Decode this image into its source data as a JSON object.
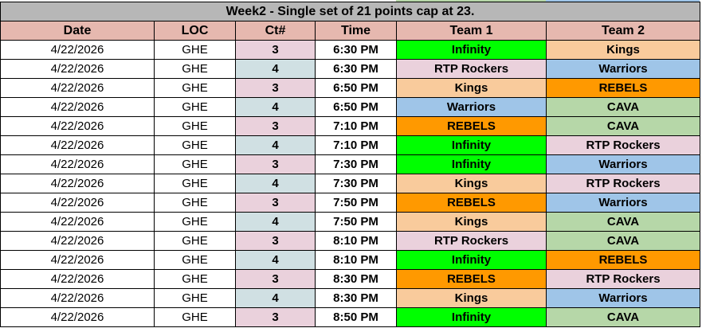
{
  "title": "Week2 - Single set of 21 points cap at 23.",
  "headers": [
    "Date",
    "LOC",
    "Ct#",
    "Time",
    "Team 1",
    "Team 2"
  ],
  "court_colors": {
    "3": "#ead1dc",
    "4": "#d0e0e3"
  },
  "team_colors": {
    "Infinity": "#00ff00",
    "Kings": "#f9cb9c",
    "RTP Rockers": "#ead1dc",
    "Warriors": "#9fc5e8",
    "REBELS": "#ff9900",
    "CAVA": "#b6d7a8"
  },
  "rows": [
    {
      "date": "4/22/2026",
      "loc": "GHE",
      "ct": "3",
      "time": "6:30 PM",
      "team1": "Infinity",
      "team2": "Kings"
    },
    {
      "date": "4/22/2026",
      "loc": "GHE",
      "ct": "4",
      "time": "6:30 PM",
      "team1": "RTP Rockers",
      "team2": "Warriors"
    },
    {
      "date": "4/22/2026",
      "loc": "GHE",
      "ct": "3",
      "time": "6:50 PM",
      "team1": "Kings",
      "team2": "REBELS"
    },
    {
      "date": "4/22/2026",
      "loc": "GHE",
      "ct": "4",
      "time": "6:50 PM",
      "team1": "Warriors",
      "team2": "CAVA"
    },
    {
      "date": "4/22/2026",
      "loc": "GHE",
      "ct": "3",
      "time": "7:10 PM",
      "team1": "REBELS",
      "team2": "CAVA"
    },
    {
      "date": "4/22/2026",
      "loc": "GHE",
      "ct": "4",
      "time": "7:10 PM",
      "team1": "Infinity",
      "team2": "RTP Rockers"
    },
    {
      "date": "4/22/2026",
      "loc": "GHE",
      "ct": "3",
      "time": "7:30 PM",
      "team1": "Infinity",
      "team2": "Warriors"
    },
    {
      "date": "4/22/2026",
      "loc": "GHE",
      "ct": "4",
      "time": "7:30 PM",
      "team1": "Kings",
      "team2": "RTP Rockers"
    },
    {
      "date": "4/22/2026",
      "loc": "GHE",
      "ct": "3",
      "time": "7:50 PM",
      "team1": "REBELS",
      "team2": "Warriors"
    },
    {
      "date": "4/22/2026",
      "loc": "GHE",
      "ct": "4",
      "time": "7:50 PM",
      "team1": "Kings",
      "team2": "CAVA"
    },
    {
      "date": "4/22/2026",
      "loc": "GHE",
      "ct": "3",
      "time": "8:10 PM",
      "team1": "RTP Rockers",
      "team2": "CAVA"
    },
    {
      "date": "4/22/2026",
      "loc": "GHE",
      "ct": "4",
      "time": "8:10 PM",
      "team1": "Infinity",
      "team2": "REBELS"
    },
    {
      "date": "4/22/2026",
      "loc": "GHE",
      "ct": "3",
      "time": "8:30 PM",
      "team1": "REBELS",
      "team2": "RTP Rockers"
    },
    {
      "date": "4/22/2026",
      "loc": "GHE",
      "ct": "4",
      "time": "8:30 PM",
      "team1": "Kings",
      "team2": "Warriors"
    },
    {
      "date": "4/22/2026",
      "loc": "GHE",
      "ct": "3",
      "time": "8:50 PM",
      "team1": "Infinity",
      "team2": "CAVA"
    }
  ]
}
